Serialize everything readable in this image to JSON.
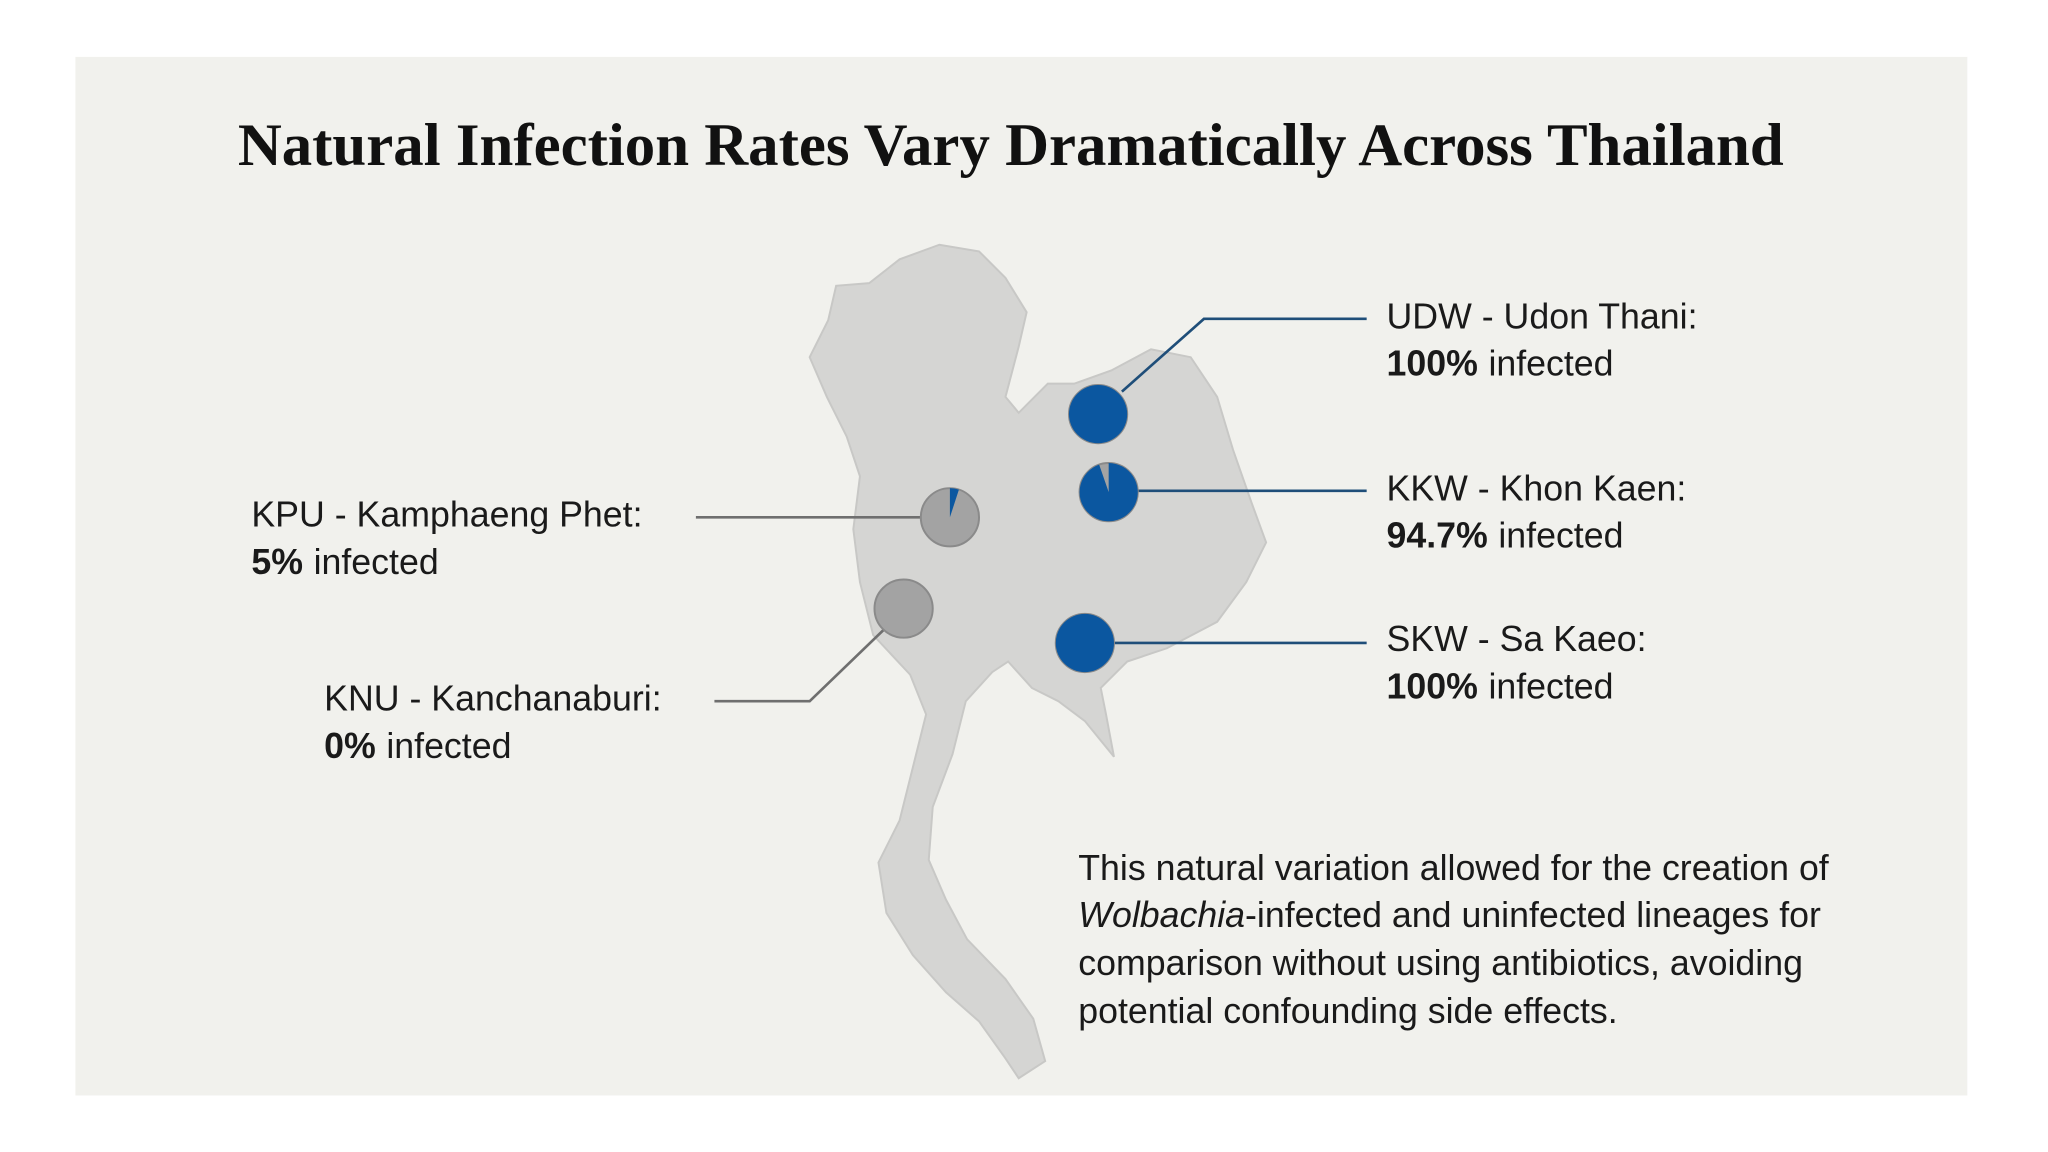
{
  "title": "Natural Infection Rates Vary Dramatically Across Thailand",
  "sites": [
    {
      "label": "UDW - Udon Thani:",
      "value": 100,
      "value_label": "100%",
      "status": "infected"
    },
    {
      "label": "KKW - Khon Kaen:",
      "value": 94.7,
      "value_label": "94.7%",
      "status": "infected"
    },
    {
      "label": "SKW - Sa Kaeo:",
      "value": 100,
      "value_label": "100%",
      "status": "infected"
    },
    {
      "label": "KPU - Kamphaeng Phet:",
      "value": 5,
      "value_label": "5%",
      "status": "infected"
    },
    {
      "label": "KNU - Kanchanaburi:",
      "value": 0,
      "value_label": "0%",
      "status": "infected"
    }
  ],
  "note": {
    "line1": "This natural variation allowed for the creation of",
    "line2_italic": "Wolbachia",
    "line2": "-infected and uninfected lineages for",
    "line3": "comparison without using antibiotics, avoiding",
    "line4": "potential confounding side effects."
  }
}
